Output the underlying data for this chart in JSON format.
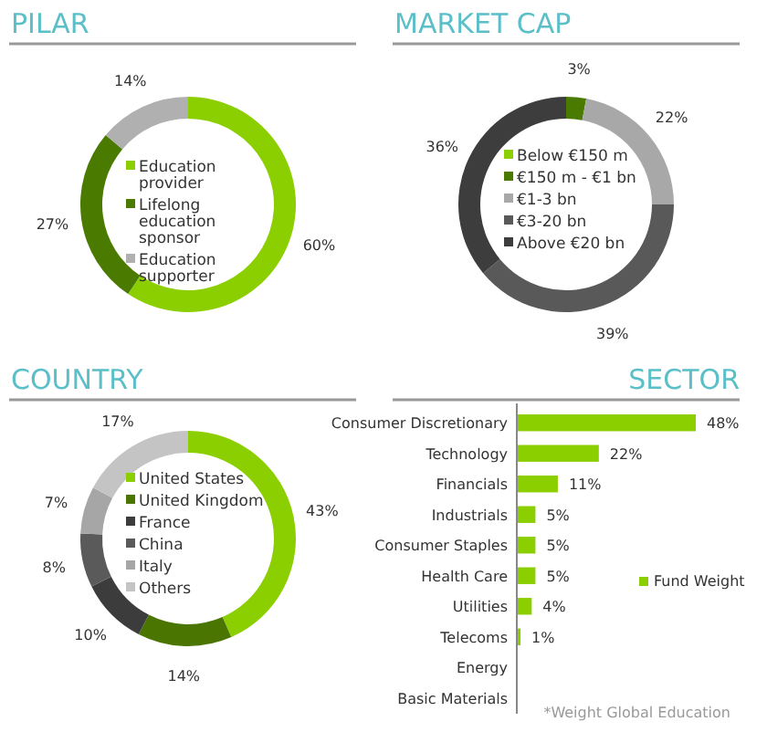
{
  "chart_data": [
    {
      "type": "donut",
      "title": "PILAR",
      "categories": [
        "Education provider",
        "Lifelong education sponsor",
        "Education supporter"
      ],
      "values": [
        60,
        27,
        14
      ],
      "colors": [
        "#8ccf00",
        "#4a7a00",
        "#b0b0b0"
      ],
      "value_labels": [
        "60%",
        "27%",
        "14%"
      ],
      "legend": "center"
    },
    {
      "type": "donut",
      "title": "MARKET CAP",
      "categories": [
        "Below €150 m",
        "€150 m - €1 bn",
        "€1-3 bn",
        "€3-20 bn",
        "Above €20 bn"
      ],
      "values": [
        0,
        3,
        22,
        39,
        36
      ],
      "colors": [
        "#8ccf00",
        "#4a7a00",
        "#a8a8a8",
        "#595959",
        "#3d3d3d"
      ],
      "value_labels": [
        null,
        "3%",
        "22%",
        "39%",
        "36%"
      ],
      "legend": "center"
    },
    {
      "type": "donut",
      "title": "COUNTRY",
      "categories": [
        "United States",
        "United Kingdom",
        "France",
        "China",
        "Italy",
        "Others"
      ],
      "values": [
        43,
        14,
        10,
        8,
        7,
        17
      ],
      "colors": [
        "#8ccf00",
        "#4a7500",
        "#3c3c3c",
        "#5a5a5a",
        "#a6a6a6",
        "#c4c4c4"
      ],
      "value_labels": [
        "43%",
        "14%",
        "10%",
        "8%",
        "7%",
        "17%"
      ],
      "legend": "center"
    },
    {
      "type": "bar",
      "orientation": "horizontal",
      "title": "SECTOR",
      "categories": [
        "Consumer Discretionary",
        "Technology",
        "Financials",
        "Industrials",
        "Consumer Staples",
        "Health Care",
        "Utilities",
        "Telecoms",
        "Energy",
        "Basic Materials"
      ],
      "series": [
        {
          "name": "Fund Weight",
          "color": "#8ccf00",
          "values": [
            48,
            22,
            11,
            5,
            5,
            5,
            4,
            1,
            0,
            0
          ],
          "value_labels": [
            "48%",
            "22%",
            "11%",
            "5%",
            "5%",
            "5%",
            "4%",
            "1%",
            null,
            null
          ]
        }
      ],
      "legend": "right",
      "annotations": [
        "*Weight Global Education"
      ]
    }
  ]
}
